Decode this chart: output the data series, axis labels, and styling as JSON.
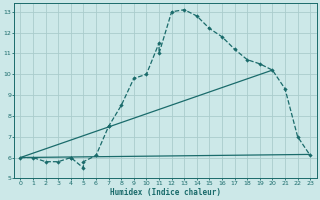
{
  "bg_color": "#cce8e8",
  "grid_color": "#aacccc",
  "line_color": "#1a6b6b",
  "xlabel": "Humidex (Indice chaleur)",
  "xlim": [
    -0.5,
    23.5
  ],
  "ylim": [
    5,
    13.4
  ],
  "yticks": [
    5,
    6,
    7,
    8,
    9,
    10,
    11,
    12,
    13
  ],
  "xticks": [
    0,
    1,
    2,
    3,
    4,
    5,
    6,
    7,
    8,
    9,
    10,
    11,
    12,
    13,
    14,
    15,
    16,
    17,
    18,
    19,
    20,
    21,
    22,
    23
  ],
  "line1_x": [
    0,
    1,
    2,
    3,
    4,
    4,
    5,
    5,
    6,
    7,
    7,
    8,
    9,
    10,
    11,
    11,
    12,
    13,
    14,
    15,
    16,
    17,
    18,
    19,
    20,
    21,
    22,
    23
  ],
  "line1_y": [
    6,
    6,
    5.8,
    5.8,
    6.0,
    6.0,
    5.5,
    5.8,
    6.1,
    7.5,
    7.5,
    8.5,
    9.8,
    10.0,
    11.5,
    11.0,
    13.0,
    13.1,
    12.8,
    12.2,
    11.8,
    11.2,
    10.7,
    10.5,
    10.2,
    9.3,
    7.0,
    6.1
  ],
  "line2_x": [
    0,
    20
  ],
  "line2_y": [
    6,
    10.2
  ],
  "line3_x": [
    0,
    23
  ],
  "line3_y": [
    6,
    6.15
  ],
  "markersize": 2.2,
  "linewidth": 0.9
}
